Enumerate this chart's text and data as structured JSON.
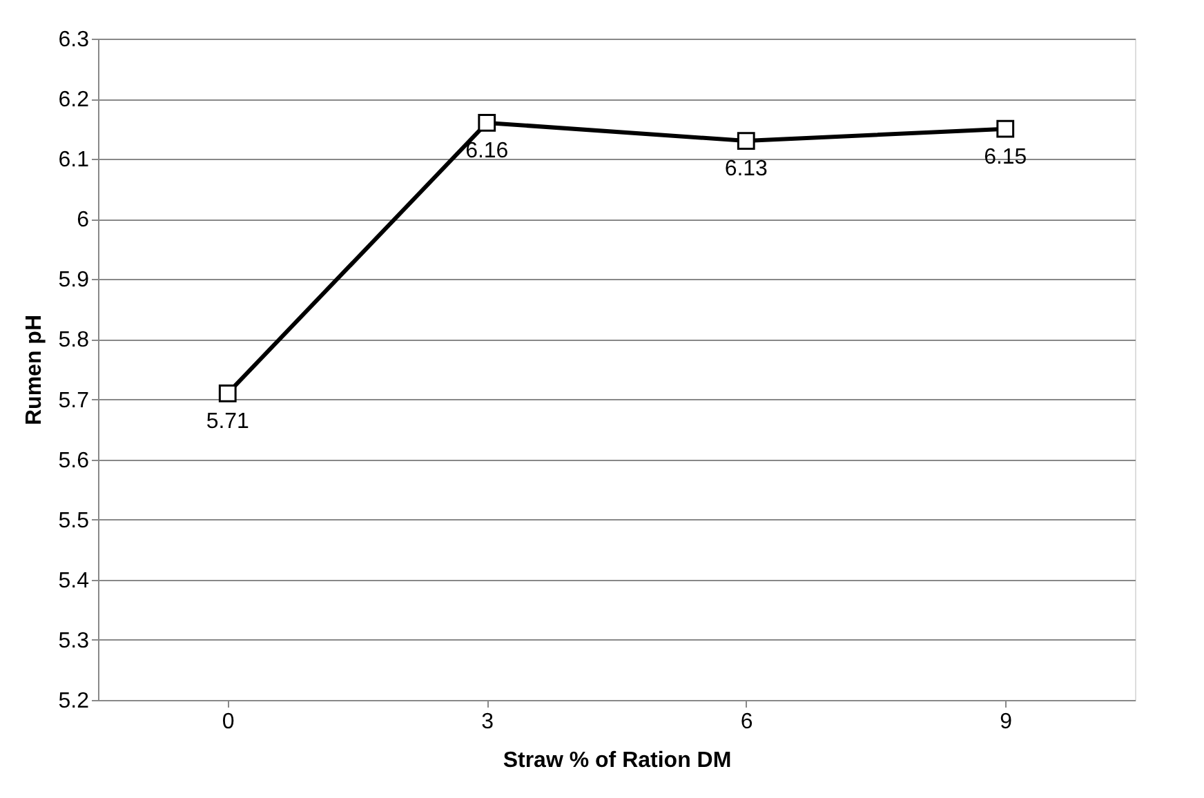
{
  "chart_data": {
    "type": "line",
    "xlabel": "Straw % of Ration DM",
    "ylabel": "Rumen pH",
    "categories": [
      "0",
      "3",
      "6",
      "9"
    ],
    "series": [
      {
        "color": "#000000",
        "values": [
          5.71,
          6.16,
          6.13,
          6.15
        ]
      }
    ],
    "ylim": [
      5.2,
      6.3
    ],
    "yticks": [
      5.2,
      5.3,
      5.4,
      5.5,
      5.6,
      5.7,
      5.8,
      5.9,
      6,
      6.1,
      6.2,
      6.3
    ],
    "grid": "y",
    "marker": "square",
    "line_style": "solid",
    "data_labels": true
  }
}
